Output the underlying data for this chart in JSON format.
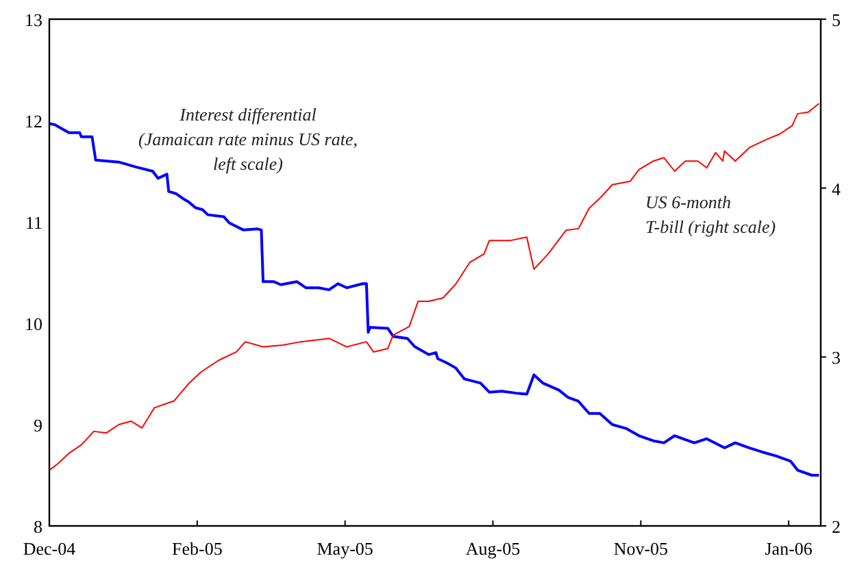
{
  "chart_data": {
    "type": "line",
    "grid": false,
    "xlim": [
      "2004-12-07",
      "2006-02-13"
    ],
    "xticks": [
      {
        "value": "2004-12-07",
        "label": "Dec-04"
      },
      {
        "value": "2005-02-28",
        "label": "Feb-05"
      },
      {
        "value": "2005-05-22",
        "label": "May-05"
      },
      {
        "value": "2005-08-13",
        "label": "Aug-05"
      },
      {
        "value": "2005-11-04",
        "label": "Nov-05"
      },
      {
        "value": "2006-01-26",
        "label": "Jan-06"
      }
    ],
    "ylim": [
      8,
      13
    ],
    "yticks": [
      8,
      9,
      10,
      11,
      12,
      13
    ],
    "y2lim": [
      2,
      5
    ],
    "y2ticks": [
      2,
      3,
      4,
      5
    ],
    "series": [
      {
        "name": "Interest differential\n(Jamaican rate minus US rate,\nleft scale)",
        "color": "#0000ff",
        "axis": "y",
        "x": [
          "2004-12-07",
          "2004-12-10",
          "2004-12-18",
          "2004-12-24",
          "2004-12-25",
          "2004-12-31",
          "2005-01-02",
          "2005-01-15",
          "2005-01-25",
          "2005-02-03",
          "2005-02-06",
          "2005-02-11",
          "2005-02-12",
          "2005-02-16",
          "2005-02-20",
          "2005-02-23",
          "2005-02-27",
          "2005-03-03",
          "2005-03-06",
          "2005-03-15",
          "2005-03-18",
          "2005-03-26",
          "2005-04-03",
          "2005-04-05",
          "2005-04-06",
          "2005-04-12",
          "2005-04-16",
          "2005-04-25",
          "2005-04-30",
          "2005-05-07",
          "2005-05-13",
          "2005-05-18",
          "2005-05-23",
          "2005-06-01",
          "2005-06-03",
          "2005-06-04",
          "2005-06-05",
          "2005-06-15",
          "2005-06-18",
          "2005-06-26",
          "2005-06-30",
          "2005-07-08",
          "2005-07-12",
          "2005-07-13",
          "2005-07-18",
          "2005-07-23",
          "2005-07-28",
          "2005-08-06",
          "2005-08-11",
          "2005-08-18",
          "2005-08-26",
          "2005-09-01",
          "2005-09-05",
          "2005-09-10",
          "2005-09-19",
          "2005-09-24",
          "2005-09-30",
          "2005-10-06",
          "2005-10-12",
          "2005-10-19",
          "2005-10-27",
          "2005-11-03",
          "2005-11-11",
          "2005-11-17",
          "2005-11-23",
          "2005-12-04",
          "2005-12-11",
          "2005-12-21",
          "2005-12-27",
          "2006-01-04",
          "2006-01-11",
          "2006-01-19",
          "2006-01-27",
          "2006-01-31",
          "2006-02-08",
          "2006-02-12"
        ],
        "values": [
          11.97,
          11.96,
          11.88,
          11.88,
          11.84,
          11.84,
          11.61,
          11.59,
          11.54,
          11.5,
          11.43,
          11.47,
          11.3,
          11.28,
          11.23,
          11.2,
          11.14,
          11.12,
          11.07,
          11.05,
          10.99,
          10.92,
          10.93,
          10.92,
          10.41,
          10.41,
          10.38,
          10.41,
          10.35,
          10.35,
          10.33,
          10.39,
          10.35,
          10.39,
          10.39,
          9.91,
          9.96,
          9.95,
          9.87,
          9.85,
          9.77,
          9.69,
          9.71,
          9.65,
          9.61,
          9.56,
          9.45,
          9.41,
          9.32,
          9.33,
          9.31,
          9.3,
          9.49,
          9.41,
          9.34,
          9.27,
          9.23,
          9.11,
          9.11,
          9.0,
          8.96,
          8.89,
          8.84,
          8.82,
          8.89,
          8.82,
          8.86,
          8.77,
          8.82,
          8.77,
          8.73,
          8.69,
          8.64,
          8.55,
          8.5,
          8.5
        ]
      },
      {
        "name": "US 6-month\nT-bill (right scale)",
        "color": "#ff0000",
        "axis": "y2",
        "x": [
          "2004-12-07",
          "2004-12-12",
          "2004-12-18",
          "2004-12-25",
          "2005-01-01",
          "2005-01-08",
          "2005-01-15",
          "2005-01-22",
          "2005-01-28",
          "2005-02-04",
          "2005-02-15",
          "2005-02-23",
          "2005-03-02",
          "2005-03-12",
          "2005-03-22",
          "2005-03-27",
          "2005-04-06",
          "2005-04-17",
          "2005-04-27",
          "2005-05-13",
          "2005-05-23",
          "2005-06-03",
          "2005-06-07",
          "2005-06-15",
          "2005-06-18",
          "2005-06-27",
          "2005-07-02",
          "2005-07-08",
          "2005-07-16",
          "2005-07-23",
          "2005-07-31",
          "2005-08-08",
          "2005-08-11",
          "2005-08-23",
          "2005-09-01",
          "2005-09-05",
          "2005-09-13",
          "2005-09-23",
          "2005-09-30",
          "2005-10-06",
          "2005-10-13",
          "2005-10-19",
          "2005-10-29",
          "2005-11-03",
          "2005-11-11",
          "2005-11-17",
          "2005-11-23",
          "2005-11-29",
          "2005-12-06",
          "2005-12-11",
          "2005-12-16",
          "2005-12-20",
          "2005-12-21",
          "2005-12-27",
          "2006-01-04",
          "2006-01-14",
          "2006-01-21",
          "2006-01-28",
          "2006-01-31",
          "2006-02-06",
          "2006-02-12"
        ],
        "values": [
          2.33,
          2.37,
          2.43,
          2.48,
          2.56,
          2.55,
          2.6,
          2.62,
          2.58,
          2.7,
          2.74,
          2.84,
          2.91,
          2.98,
          3.03,
          3.09,
          3.06,
          3.07,
          3.09,
          3.11,
          3.06,
          3.09,
          3.03,
          3.05,
          3.13,
          3.18,
          3.33,
          3.33,
          3.35,
          3.43,
          3.56,
          3.61,
          3.69,
          3.69,
          3.71,
          3.52,
          3.61,
          3.75,
          3.76,
          3.88,
          3.95,
          4.02,
          4.04,
          4.11,
          4.16,
          4.18,
          4.1,
          4.16,
          4.16,
          4.12,
          4.21,
          4.16,
          4.22,
          4.16,
          4.24,
          4.29,
          4.32,
          4.37,
          4.44,
          4.45,
          4.5
        ]
      }
    ]
  }
}
